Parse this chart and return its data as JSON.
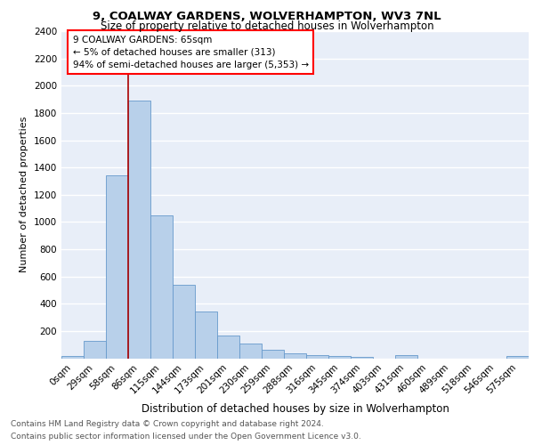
{
  "title1": "9, COALWAY GARDENS, WOLVERHAMPTON, WV3 7NL",
  "title2": "Size of property relative to detached houses in Wolverhampton",
  "xlabel": "Distribution of detached houses by size in Wolverhampton",
  "ylabel": "Number of detached properties",
  "footer1": "Contains HM Land Registry data © Crown copyright and database right 2024.",
  "footer2": "Contains public sector information licensed under the Open Government Licence v3.0.",
  "bar_labels": [
    "0sqm",
    "29sqm",
    "58sqm",
    "86sqm",
    "115sqm",
    "144sqm",
    "173sqm",
    "201sqm",
    "230sqm",
    "259sqm",
    "288sqm",
    "316sqm",
    "345sqm",
    "374sqm",
    "403sqm",
    "431sqm",
    "460sqm",
    "489sqm",
    "518sqm",
    "546sqm",
    "575sqm"
  ],
  "bar_values": [
    15,
    130,
    1340,
    1890,
    1050,
    540,
    340,
    165,
    110,
    60,
    35,
    25,
    18,
    10,
    0,
    20,
    0,
    0,
    0,
    0,
    15
  ],
  "bar_color": "#b8d0ea",
  "bar_edgecolor": "#6699cc",
  "ylim": [
    0,
    2400
  ],
  "yticks": [
    0,
    200,
    400,
    600,
    800,
    1000,
    1200,
    1400,
    1600,
    1800,
    2000,
    2200,
    2400
  ],
  "red_line_x": 2.5,
  "annotation_text": "9 COALWAY GARDENS: 65sqm\n← 5% of detached houses are smaller (313)\n94% of semi-detached houses are larger (5,353) →",
  "bg_color": "#e8eef8",
  "grid_color": "#ffffff",
  "title1_fontsize": 9.5,
  "title2_fontsize": 8.5,
  "xlabel_fontsize": 8.5,
  "ylabel_fontsize": 8.0,
  "tick_fontsize": 7.5,
  "footer_fontsize": 6.5
}
